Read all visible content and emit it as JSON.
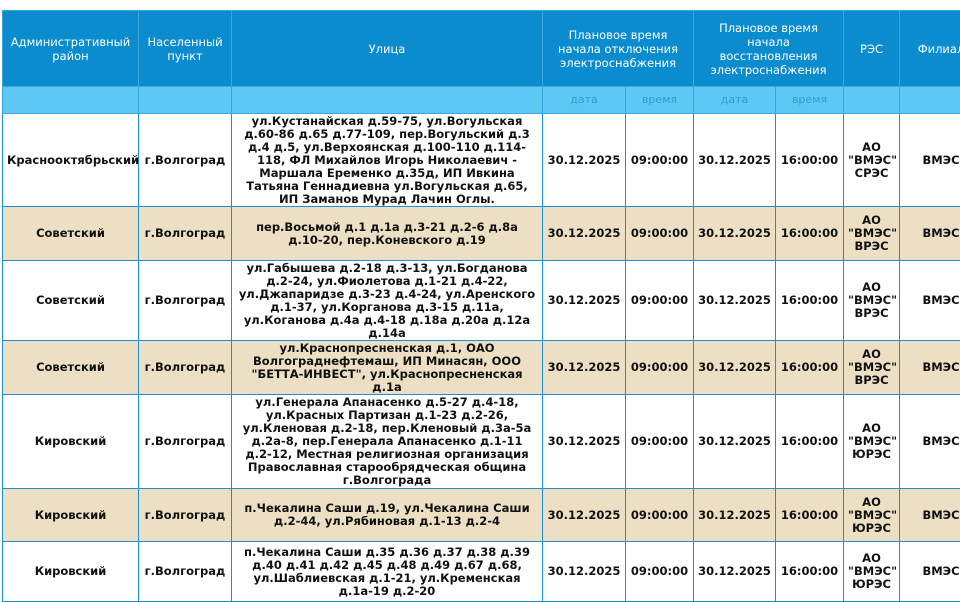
{
  "headers": {
    "district": "Административный район",
    "locality": "Населенный пункт",
    "street": "Улица",
    "off_time": "Плановое время начала отключения электроснабжения",
    "on_time": "Плановое время начала восстановления электроснабжения",
    "res": "РЭС",
    "branch": "Филиал",
    "date": "дата",
    "time": "время"
  },
  "rows": [
    {
      "district": "Краснооктябрьский",
      "locality": "г.Волгоград",
      "street": "ул.Кустанайская д.59-75, ул.Вогульская д.60-86 д.65 д.77-109, пер.Вогульский д.3 д.4 д.5, ул.Верхоянская д.100-110 д.114-118, ФЛ Михайлов Игорь Николаевич - Маршала Еременко д.35д, ИП Ивкина Татьяна Геннадиевна ул.Вогульская д.65, ИП Заманов Мурад Лачин Оглы.",
      "off_date": "30.12.2025",
      "off_time": "09:00:00",
      "on_date": "30.12.2025",
      "on_time": "16:00:00",
      "res": "АО \"ВМЭС\" СРЭС",
      "branch": "ВМЭС"
    },
    {
      "district": "Советский",
      "locality": "г.Волгоград",
      "street": "пер.Восьмой д.1 д.1а д.3-21 д.2-6 д.8а д.10-20, пер.Коневского д.19",
      "off_date": "30.12.2025",
      "off_time": "09:00:00",
      "on_date": "30.12.2025",
      "on_time": "16:00:00",
      "res": "АО \"ВМЭС\" ВРЭС",
      "branch": "ВМЭС"
    },
    {
      "district": "Советский",
      "locality": "г.Волгоград",
      "street": "ул.Габышева д.2-18 д.3-13, ул.Богданова д.2-24, ул.Фиолетова д.1-21 д.4-22, ул.Джапаридзе д.3-23 д.4-24, ул.Аренского д.1-37, ул.Корганова д.3-15 д.11а, ул.Коганова д.4а д.4-18 д.18а д.20а д.12а д.14а",
      "off_date": "30.12.2025",
      "off_time": "09:00:00",
      "on_date": "30.12.2025",
      "on_time": "16:00:00",
      "res": "АО \"ВМЭС\" ВРЭС",
      "branch": "ВМЭС"
    },
    {
      "district": "Советский",
      "locality": "г.Волгоград",
      "street": "ул.Краснопресненская д.1, ОАО Волгограднефтемаш, ИП Минасян, ООО \"БЕТТА-ИНВЕСТ\", ул.Краснопресненская д.1а",
      "off_date": "30.12.2025",
      "off_time": "09:00:00",
      "on_date": "30.12.2025",
      "on_time": "16:00:00",
      "res": "АО \"ВМЭС\" ВРЭС",
      "branch": "ВМЭС"
    },
    {
      "district": "Кировский",
      "locality": "г.Волгоград",
      "street": "ул.Генерала Апанасенко д.5-27 д.4-18, ул.Красных Партизан д.1-23 д.2-26, ул.Кленовая д.2-18, пер.Кленовый д.3а-5а д.2а-8, пер.Генерала Апанасенко д.1-11 д.2-12, Местная религиозная организация Православная старообрядческая община г.Волгограда",
      "off_date": "30.12.2025",
      "off_time": "09:00:00",
      "on_date": "30.12.2025",
      "on_time": "16:00:00",
      "res": "АО \"ВМЭС\" ЮРЭС",
      "branch": "ВМЭС"
    },
    {
      "district": "Кировский",
      "locality": "г.Волгоград",
      "street": "п.Чекалина Саши д.19, ул.Чекалина Саши д.2-44, ул.Рябиновая д.1-13 д.2-4",
      "off_date": "30.12.2025",
      "off_time": "09:00:00",
      "on_date": "30.12.2025",
      "on_time": "16:00:00",
      "res": "АО \"ВМЭС\" ЮРЭС",
      "branch": "ВМЭС"
    },
    {
      "district": "Кировский",
      "locality": "г.Волгоград",
      "street": "п.Чекалина Саши д.35 д.36 д.37 д.38 д.39 д.40 д.41 д.42 д.45 д.48 д.49 д.67 д.68, ул.Шаблиевская д.1-21, ул.Кременская д.1а-19 д.2-20",
      "off_date": "30.12.2025",
      "off_time": "09:00:00",
      "on_date": "30.12.2025",
      "on_time": "16:00:00",
      "res": "АО \"ВМЭС\" ЮРЭС",
      "branch": "ВМЭС"
    }
  ]
}
